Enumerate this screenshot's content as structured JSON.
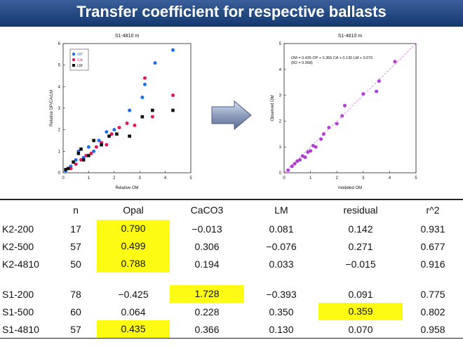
{
  "header": {
    "title": "Transfer coefficient for respective ballasts"
  },
  "charts": [
    {
      "type": "scatter",
      "title": "S1-4810 m",
      "xlabel": "Relative OM",
      "ylabel": "Relative OP/CA/LM",
      "xlim": [
        0,
        5
      ],
      "ylim": [
        0,
        6
      ],
      "xticks": [
        "0",
        "1",
        "2",
        "3",
        "4",
        "5"
      ],
      "yticks": [
        "0",
        "1",
        "2",
        "3",
        "4",
        "5",
        "6"
      ],
      "legend": [
        "OP",
        "CA",
        "LM"
      ],
      "series": [
        {
          "name": "OP",
          "color": "#1e6ff0",
          "marker": "circle",
          "points": [
            [
              0.1,
              0.1
            ],
            [
              0.3,
              0.3
            ],
            [
              0.5,
              0.6
            ],
            [
              0.6,
              1.0
            ],
            [
              0.8,
              0.7
            ],
            [
              1.0,
              1.2
            ],
            [
              1.2,
              1.0
            ],
            [
              1.4,
              1.5
            ],
            [
              1.7,
              1.9
            ],
            [
              2.0,
              2.0
            ],
            [
              2.6,
              2.9
            ],
            [
              3.1,
              3.5
            ],
            [
              3.2,
              4.1
            ],
            [
              3.6,
              5.1
            ],
            [
              4.3,
              5.7
            ]
          ]
        },
        {
          "name": "CA",
          "color": "#e5195a",
          "marker": "circle",
          "points": [
            [
              0.3,
              0.2
            ],
            [
              0.5,
              0.4
            ],
            [
              0.7,
              0.6
            ],
            [
              0.9,
              0.8
            ],
            [
              1.1,
              0.9
            ],
            [
              1.3,
              1.2
            ],
            [
              1.5,
              1.4
            ],
            [
              1.7,
              1.3
            ],
            [
              1.9,
              1.8
            ],
            [
              2.2,
              2.1
            ],
            [
              2.5,
              2.3
            ],
            [
              2.8,
              2.2
            ],
            [
              3.2,
              4.4
            ],
            [
              3.5,
              2.6
            ],
            [
              4.3,
              3.6
            ]
          ]
        },
        {
          "name": "LM",
          "color": "#111111",
          "marker": "square",
          "points": [
            [
              0.1,
              0.15
            ],
            [
              0.2,
              0.2
            ],
            [
              0.4,
              0.5
            ],
            [
              0.6,
              0.9
            ],
            [
              0.7,
              1.1
            ],
            [
              0.8,
              0.6
            ],
            [
              1.0,
              0.8
            ],
            [
              1.2,
              1.5
            ],
            [
              1.5,
              1.3
            ],
            [
              1.8,
              1.7
            ],
            [
              2.1,
              1.8
            ],
            [
              2.6,
              1.7
            ],
            [
              3.1,
              2.6
            ],
            [
              3.5,
              2.9
            ],
            [
              4.3,
              2.9
            ]
          ]
        }
      ]
    },
    {
      "type": "scatter",
      "title": "S1-4810 m",
      "xlabel": "modeled OM",
      "ylabel": "Observed OM",
      "xlim": [
        0,
        5
      ],
      "ylim": [
        0,
        5
      ],
      "xticks": [
        "0",
        "1",
        "2",
        "3",
        "4",
        "5"
      ],
      "yticks": [
        "0",
        "1",
        "2",
        "3",
        "4",
        "5"
      ],
      "annotation": [
        "OM = 0.435 OP + 0.366 CA + 0.130 LM + 0.070",
        "(R2 = 0.958)"
      ],
      "fit_line": [
        [
          0,
          0
        ],
        [
          5,
          5
        ]
      ],
      "series": [
        {
          "name": "",
          "color": "#b23ed6",
          "marker": "circle",
          "points": [
            [
              0.15,
              0.1
            ],
            [
              0.3,
              0.25
            ],
            [
              0.4,
              0.35
            ],
            [
              0.5,
              0.45
            ],
            [
              0.6,
              0.5
            ],
            [
              0.7,
              0.65
            ],
            [
              0.8,
              0.6
            ],
            [
              0.9,
              0.8
            ],
            [
              1.0,
              0.85
            ],
            [
              1.1,
              1.05
            ],
            [
              1.2,
              1.0
            ],
            [
              1.4,
              1.3
            ],
            [
              1.5,
              1.5
            ],
            [
              1.7,
              1.75
            ],
            [
              2.0,
              1.9
            ],
            [
              2.2,
              2.2
            ],
            [
              2.3,
              2.6
            ],
            [
              3.0,
              3.05
            ],
            [
              3.5,
              3.15
            ],
            [
              3.6,
              3.55
            ],
            [
              4.2,
              4.3
            ]
          ]
        }
      ]
    }
  ],
  "table": {
    "headers": [
      "",
      "n",
      "Opal",
      "CaCO3",
      "LM",
      "residual",
      "r^2"
    ],
    "group1": [
      [
        "K2-200",
        "17",
        "0.790",
        "−0.013",
        "0.081",
        "0.142",
        "0.931"
      ],
      [
        "K2-500",
        "57",
        "0.499",
        "0.306",
        "−0.076",
        "0.271",
        "0.677"
      ],
      [
        "K2-4810",
        "50",
        "0.788",
        "0.194",
        "0.033",
        "−0.015",
        "0.916"
      ]
    ],
    "group2": [
      [
        "S1-200",
        "78",
        "−0.425",
        "1.728",
        "−0.393",
        "0.091",
        "0.775"
      ],
      [
        "S1-500",
        "60",
        "0.064",
        "0.228",
        "0.350",
        "0.359",
        "0.802"
      ],
      [
        "S1-4810",
        "57",
        "0.435",
        "0.366",
        "0.130",
        "0.070",
        "0.958"
      ]
    ],
    "highlight_color": "#fdfb14"
  }
}
